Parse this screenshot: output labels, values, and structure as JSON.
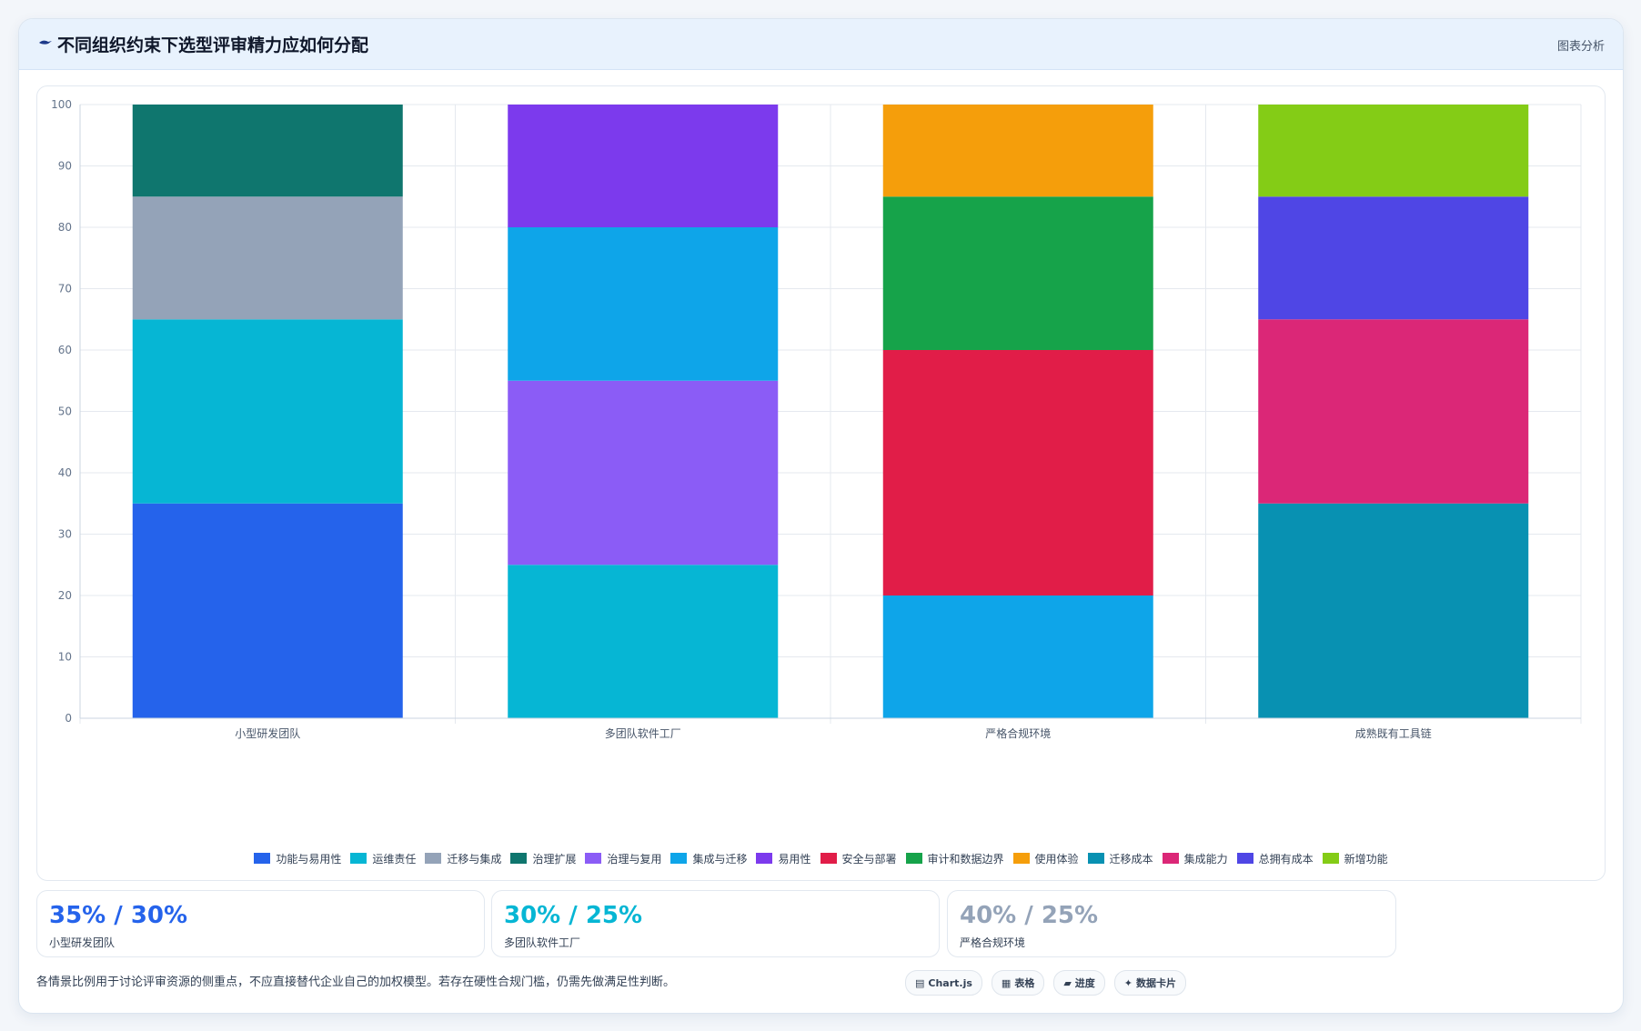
{
  "header": {
    "title": "不同组织约束下选型评审精力应如何分配",
    "right_label": "图表分析",
    "icon": "bird-icon"
  },
  "chart_data": {
    "type": "bar",
    "stacked": true,
    "categories": [
      "小型研发团队",
      "多团队软件工厂",
      "严格合规环境",
      "成熟既有工具链"
    ],
    "ylim": [
      0,
      100
    ],
    "yticks": [
      0,
      10,
      20,
      30,
      40,
      50,
      60,
      70,
      80,
      90,
      100
    ],
    "grid": true,
    "legend_position": "bottom",
    "series": [
      {
        "name": "功能与易用性",
        "color": "#2563eb",
        "values": [
          35,
          0,
          0,
          0
        ]
      },
      {
        "name": "运维责任",
        "color": "#06b6d4",
        "values": [
          30,
          25,
          0,
          0
        ]
      },
      {
        "name": "迁移与集成",
        "color": "#94a3b8",
        "values": [
          20,
          0,
          0,
          0
        ]
      },
      {
        "name": "治理扩展",
        "color": "#0f766e",
        "values": [
          15,
          0,
          0,
          0
        ]
      },
      {
        "name": "治理与复用",
        "color": "#8b5cf6",
        "values": [
          0,
          30,
          0,
          0
        ]
      },
      {
        "name": "集成与迁移",
        "color": "#0ea5e9",
        "values": [
          0,
          25,
          20,
          0
        ]
      },
      {
        "name": "易用性",
        "color": "#7c3aed",
        "values": [
          0,
          20,
          0,
          0
        ]
      },
      {
        "name": "安全与部署",
        "color": "#e11d48",
        "values": [
          0,
          0,
          40,
          0
        ]
      },
      {
        "name": "审计和数据边界",
        "color": "#16a34a",
        "values": [
          0,
          0,
          25,
          0
        ]
      },
      {
        "name": "使用体验",
        "color": "#f59e0b",
        "values": [
          0,
          0,
          15,
          0
        ]
      },
      {
        "name": "迁移成本",
        "color": "#0891b2",
        "values": [
          0,
          0,
          0,
          35
        ]
      },
      {
        "name": "集成能力",
        "color": "#db2777",
        "values": [
          0,
          0,
          0,
          30
        ]
      },
      {
        "name": "总拥有成本",
        "color": "#4f46e5",
        "values": [
          0,
          0,
          0,
          20
        ]
      },
      {
        "name": "新增功能",
        "color": "#84cc16",
        "values": [
          0,
          0,
          0,
          15
        ]
      }
    ]
  },
  "stats": [
    {
      "value": "35% / 30%",
      "label": "小型研发团队",
      "color": "#2563eb"
    },
    {
      "value": "30% / 25%",
      "label": "多团队软件工厂",
      "color": "#06b6d4"
    },
    {
      "value": "40% / 25%",
      "label": "严格合规环境",
      "color": "#94a3b8"
    }
  ],
  "footer": {
    "note": "各情景比例用于讨论评审资源的侧重点，不应直接替代企业自己的加权模型。若存在硬性合规门槛，仍需先做满足性判断。",
    "pills": [
      {
        "icon": "chart-icon",
        "glyph": "▤",
        "label": "Chart.js"
      },
      {
        "icon": "table-icon",
        "glyph": "▦",
        "label": "表格"
      },
      {
        "icon": "progress-icon",
        "glyph": "▰",
        "label": "进度"
      },
      {
        "icon": "card-icon",
        "glyph": "✦",
        "label": "数据卡片"
      }
    ]
  }
}
